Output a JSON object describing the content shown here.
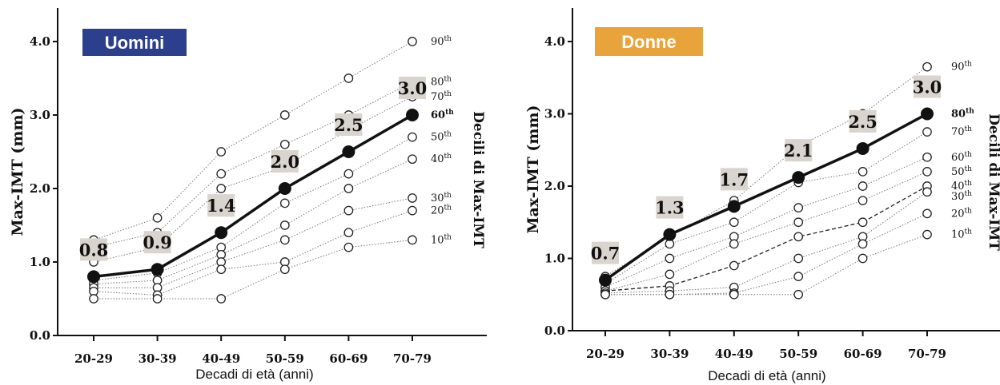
{
  "chart_data": [
    {
      "type": "line",
      "title": "Uomini",
      "title_color": "#2B3F8C",
      "xlabel": "Decadi di età (anni)",
      "ylabel": "Max-IMT (mm)",
      "right_label": "Decili di Max-IMT",
      "categories": [
        "20-29",
        "30-39",
        "40-49",
        "50-59",
        "60-69",
        "70-79"
      ],
      "yticks": [
        "0.0",
        "1.0",
        "2.0",
        "3.0",
        "4.0"
      ],
      "ylim": [
        0,
        4.4
      ],
      "grid": false,
      "median": {
        "name": "60th",
        "values": [
          0.8,
          0.9,
          1.4,
          2.0,
          2.5,
          3.0
        ],
        "labels": [
          "0.8",
          "0.9",
          "1.4",
          "2.0",
          "2.5",
          "3.0"
        ]
      },
      "series": [
        {
          "name": "90th",
          "values": [
            1.3,
            1.6,
            2.5,
            3.0,
            3.5,
            4.0
          ]
        },
        {
          "name": "80th",
          "values": [
            1.2,
            1.4,
            2.2,
            2.6,
            3.0,
            3.45
          ]
        },
        {
          "name": "70th",
          "values": [
            1.0,
            1.2,
            2.0,
            2.3,
            2.8,
            3.25
          ]
        },
        {
          "name": "50th",
          "values": [
            0.75,
            0.85,
            1.2,
            1.8,
            2.2,
            2.7
          ]
        },
        {
          "name": "40th",
          "values": [
            0.7,
            0.75,
            1.1,
            1.5,
            2.0,
            2.4
          ]
        },
        {
          "name": "30th",
          "values": [
            0.65,
            0.65,
            1.0,
            1.3,
            1.7,
            1.87
          ]
        },
        {
          "name": "20th",
          "values": [
            0.6,
            0.55,
            0.9,
            1.0,
            1.4,
            1.7
          ]
        },
        {
          "name": "10th",
          "values": [
            0.5,
            0.5,
            0.5,
            0.9,
            1.2,
            1.3
          ]
        }
      ],
      "dashed_series": []
    },
    {
      "type": "line",
      "title": "Donne",
      "title_color": "#E8A33A",
      "xlabel": "Decadi di età (anni)",
      "ylabel": "Max-IMT (mm)",
      "right_label": "Decili di Max-IMT",
      "categories": [
        "20-29",
        "30-39",
        "40-49",
        "50-59",
        "60-69",
        "70-79"
      ],
      "yticks": [
        "0.0",
        "1.0",
        "2.0",
        "3.0",
        "4.0"
      ],
      "ylim": [
        0,
        4.4
      ],
      "grid": false,
      "median": {
        "name": "80th",
        "values": [
          0.7,
          1.33,
          1.72,
          2.12,
          2.52,
          3.0
        ],
        "labels": [
          "0.7",
          "1.3",
          "1.7",
          "2.1",
          "2.5",
          "3.0"
        ]
      },
      "series": [
        {
          "name": "90th",
          "values": [
            0.75,
            1.3,
            1.8,
            2.55,
            3.0,
            3.65
          ]
        },
        {
          "name": "70th",
          "values": [
            0.65,
            1.2,
            1.5,
            2.05,
            2.2,
            2.75
          ]
        },
        {
          "name": "60th",
          "values": [
            0.6,
            1.0,
            1.3,
            1.7,
            2.0,
            2.4
          ]
        },
        {
          "name": "50th",
          "values": [
            0.55,
            0.78,
            1.2,
            1.5,
            1.8,
            2.2
          ]
        },
        {
          "name": "40th",
          "values": [
            0.55,
            0.62,
            0.9,
            1.3,
            1.5,
            2.0
          ]
        },
        {
          "name": "30th",
          "values": [
            0.52,
            0.55,
            0.6,
            1.0,
            1.3,
            1.92
          ]
        },
        {
          "name": "20th",
          "values": [
            0.5,
            0.5,
            0.52,
            0.75,
            1.2,
            1.62
          ]
        },
        {
          "name": "10th",
          "values": [
            0.5,
            0.5,
            0.5,
            0.5,
            1.0,
            1.33
          ]
        }
      ],
      "dashed_series": [
        "40th"
      ]
    }
  ]
}
